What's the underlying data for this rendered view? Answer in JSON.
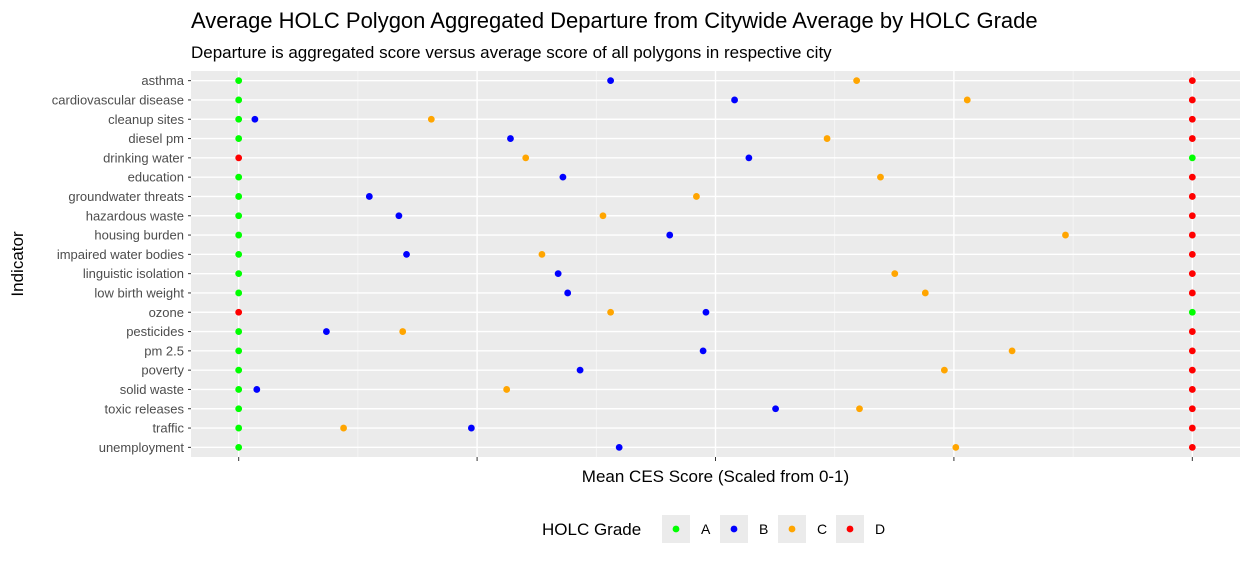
{
  "chart_data": {
    "type": "scatter",
    "title": "Average HOLC Polygon Aggregated Departure from Citywide Average by HOLC Grade",
    "subtitle": "Departure is aggregated score versus average score of all polygons in respective city",
    "xlabel": "Mean CES Score (Scaled from 0-1)",
    "ylabel": "Indicator",
    "xlim": [
      -0.05,
      1.05
    ],
    "x_ticks": [
      0,
      0.25,
      0.5,
      0.75,
      1.0
    ],
    "x_tick_labels_shown": false,
    "grid": true,
    "legend": {
      "title": "HOLC Grade",
      "position": "bottom"
    },
    "categories": [
      "asthma",
      "cardiovascular disease",
      "cleanup sites",
      "diesel pm",
      "drinking water",
      "education",
      "groundwater threats",
      "hazardous waste",
      "housing burden",
      "impaired water bodies",
      "linguistic isolation",
      "low birth weight",
      "ozone",
      "pesticides",
      "pm 2.5",
      "poverty",
      "solid waste",
      "toxic releases",
      "traffic",
      "unemployment"
    ],
    "series": [
      {
        "name": "A",
        "color": "#00ff00",
        "values": [
          0,
          0,
          0,
          0,
          1,
          0,
          0,
          0,
          0,
          0,
          0,
          0,
          1,
          0,
          0,
          0,
          0,
          0,
          0,
          0
        ]
      },
      {
        "name": "B",
        "color": "#0000ff",
        "values": [
          0.39,
          0.52,
          0.017,
          0.285,
          0.535,
          0.34,
          0.137,
          0.168,
          0.452,
          0.176,
          0.335,
          0.345,
          0.49,
          0.092,
          0.487,
          0.358,
          0.019,
          0.563,
          0.244,
          0.399
        ]
      },
      {
        "name": "C",
        "color": "#ffa500",
        "values": [
          0.648,
          0.764,
          0.202,
          0.617,
          0.301,
          0.673,
          0.48,
          0.382,
          0.867,
          0.318,
          0.688,
          0.72,
          0.39,
          0.172,
          0.811,
          0.74,
          0.281,
          0.651,
          0.11,
          0.752
        ]
      },
      {
        "name": "D",
        "color": "#ff0000",
        "values": [
          1,
          1,
          1,
          1,
          0,
          1,
          1,
          1,
          1,
          1,
          1,
          1,
          0,
          1,
          1,
          1,
          1,
          1,
          1,
          1
        ]
      }
    ]
  }
}
